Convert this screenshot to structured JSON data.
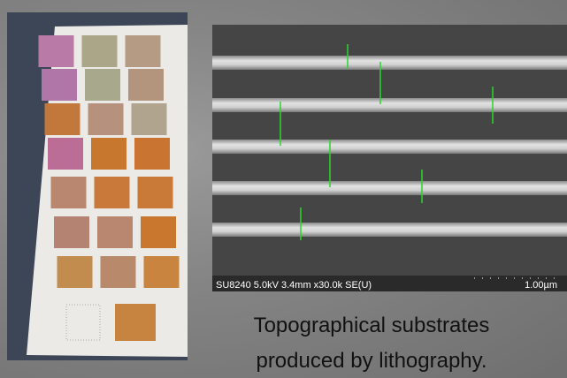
{
  "sem_image": {
    "info": "SU8240 5.0kV 3.4mm x30.0k SE(U)",
    "scale": "1.00µm"
  },
  "caption": {
    "lines": [
      "Topographical substrates",
      "produced by lithography."
    ]
  }
}
